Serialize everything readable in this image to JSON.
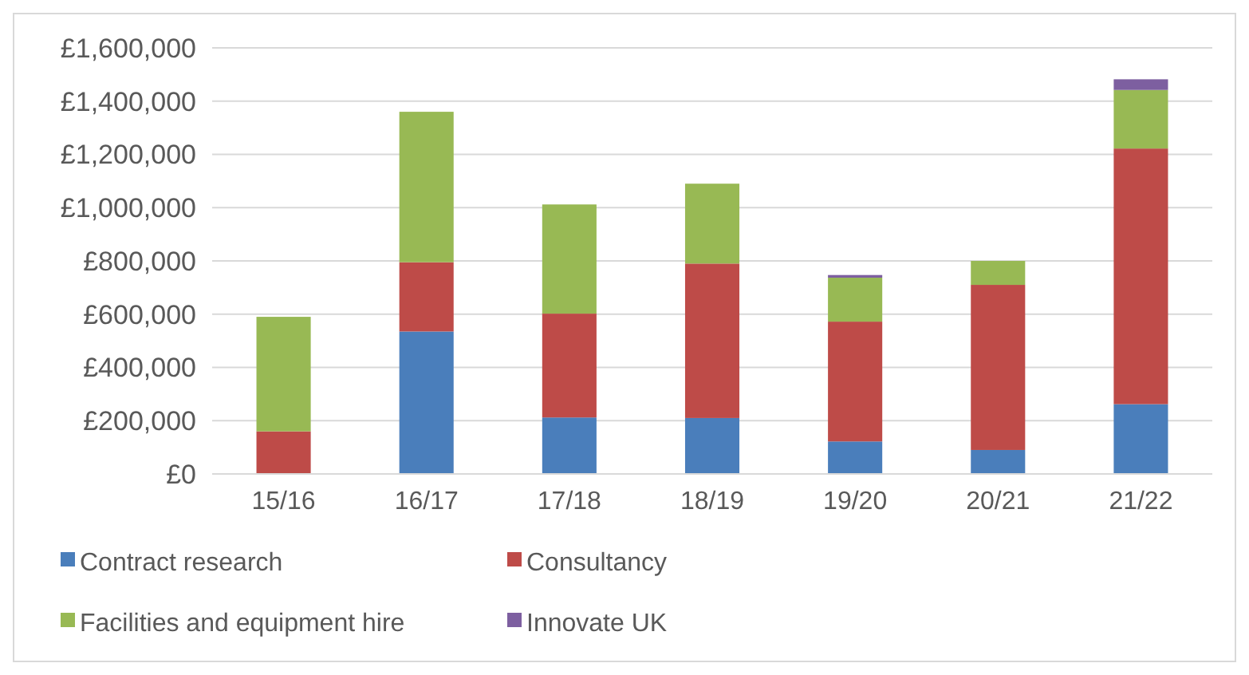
{
  "chart_data": {
    "type": "bar",
    "stacked": true,
    "categories": [
      "15/16",
      "16/17",
      "17/18",
      "18/19",
      "19/20",
      "20/21",
      "21/22"
    ],
    "series": [
      {
        "name": "Contract research",
        "color": "#4a7ebb",
        "values": [
          0,
          535000,
          212000,
          210000,
          122000,
          90000,
          262000
        ]
      },
      {
        "name": "Consultancy",
        "color": "#be4b48",
        "values": [
          160000,
          260000,
          390000,
          580000,
          450000,
          620000,
          960000
        ]
      },
      {
        "name": "Facilities and equipment hire",
        "color": "#98b954",
        "values": [
          430000,
          565000,
          410000,
          300000,
          165000,
          90000,
          220000
        ]
      },
      {
        "name": "Innovate UK",
        "color": "#7d5fa0",
        "values": [
          0,
          0,
          0,
          0,
          10000,
          0,
          40000
        ]
      }
    ],
    "ylim": [
      0,
      1600000
    ],
    "yticks": [
      {
        "value": 0,
        "label": "£0"
      },
      {
        "value": 200000,
        "label": "£200,000"
      },
      {
        "value": 400000,
        "label": "£400,000"
      },
      {
        "value": 600000,
        "label": "£600,000"
      },
      {
        "value": 800000,
        "label": "£800,000"
      },
      {
        "value": 1000000,
        "label": "£1,000,000"
      },
      {
        "value": 1200000,
        "label": "£1,200,000"
      },
      {
        "value": 1400000,
        "label": "£1,400,000"
      },
      {
        "value": 1600000,
        "label": "£1,600,000"
      }
    ],
    "grid": "y",
    "legend": "bottom"
  }
}
